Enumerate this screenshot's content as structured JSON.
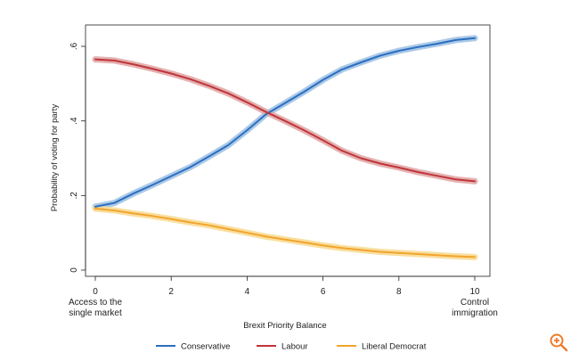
{
  "chart_data": {
    "type": "line",
    "title": "",
    "xlabel": "Brexit Priority Balance",
    "ylabel": "Probability of voting for party",
    "xlim": [
      0,
      10
    ],
    "ylim": [
      0,
      0.65
    ],
    "x_ticks": [
      0,
      2,
      4,
      6,
      8,
      10
    ],
    "y_ticks": [
      0,
      0.2,
      0.4,
      0.6
    ],
    "y_tick_labels": [
      "0",
      ".2",
      ".4",
      ".6"
    ],
    "x_end_labels": {
      "left": [
        "Access to the",
        "single market"
      ],
      "right": [
        "Control",
        "immigration"
      ]
    },
    "x": [
      0,
      0.5,
      1,
      1.5,
      2,
      2.5,
      3,
      3.5,
      4,
      4.5,
      5,
      5.5,
      6,
      6.5,
      7,
      7.5,
      8,
      8.5,
      9,
      9.5,
      10
    ],
    "series": [
      {
        "name": "Conservative",
        "color": "#2b6fc1",
        "band_color": "#9cc0e3",
        "values": [
          0.17,
          0.18,
          0.205,
          0.228,
          0.252,
          0.276,
          0.305,
          0.335,
          0.375,
          0.418,
          0.448,
          0.478,
          0.51,
          0.538,
          0.557,
          0.575,
          0.588,
          0.598,
          0.607,
          0.617,
          0.622
        ]
      },
      {
        "name": "Labour",
        "color": "#c0353a",
        "band_color": "#e0a3a3",
        "values": [
          0.565,
          0.562,
          0.552,
          0.54,
          0.527,
          0.512,
          0.494,
          0.474,
          0.45,
          0.424,
          0.4,
          0.375,
          0.348,
          0.32,
          0.3,
          0.286,
          0.275,
          0.263,
          0.253,
          0.243,
          0.238
        ]
      },
      {
        "name": "Liberal Democrat",
        "color": "#f2a42c",
        "band_color": "#f8d98f",
        "values": [
          0.165,
          0.16,
          0.152,
          0.145,
          0.137,
          0.128,
          0.12,
          0.11,
          0.1,
          0.09,
          0.082,
          0.074,
          0.066,
          0.059,
          0.054,
          0.049,
          0.046,
          0.043,
          0.04,
          0.037,
          0.035
        ]
      }
    ],
    "legend_position": "bottom"
  },
  "ui": {
    "zoom_icon": "zoom-in-icon",
    "zoom_color": "#f07b2a"
  }
}
